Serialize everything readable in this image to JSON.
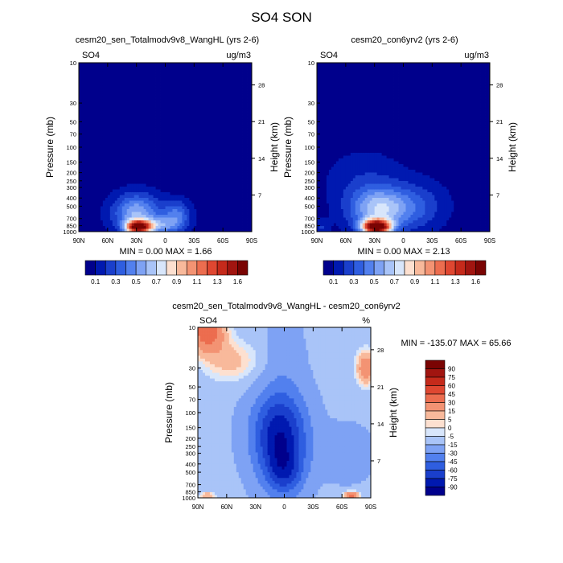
{
  "figure": {
    "title": "SO4 SON"
  },
  "chart_data": [
    {
      "type": "heatmap",
      "title": "cesm20_sen_Totalmodv9v8_WangHL (yrs 2-6)",
      "left_label": "SO4",
      "right_label": "ug/m3",
      "ylabel": "Pressure (mb)",
      "y2label": "Height (km)",
      "x_ticks": [
        "90N",
        "60N",
        "30N",
        "0",
        "30S",
        "60S",
        "90S"
      ],
      "y_ticks": [
        "10",
        "30",
        "50",
        "70",
        "100",
        "150",
        "200",
        "250",
        "300",
        "400",
        "500",
        "700",
        "850",
        "1000"
      ],
      "y2_ticks": [
        "28",
        "21",
        "14",
        "7"
      ],
      "y_scale": "log",
      "min_max": "MIN =   0.00   MAX =   1.66",
      "min": 0.0,
      "max": 1.66,
      "colorbar": {
        "orientation": "horizontal",
        "labels": [
          "0.1",
          "0.3",
          "0.5",
          "0.7",
          "0.9",
          "1.1",
          "1.3",
          "1.6"
        ],
        "colors": [
          "#00008c",
          "#0019b0",
          "#1a3fcc",
          "#2f5ee0",
          "#5280ee",
          "#7ea2f4",
          "#a9c4f8",
          "#d8e6fb",
          "#fde0d0",
          "#f8b99b",
          "#f39373",
          "#ec6d4f",
          "#df4731",
          "#c52a1b",
          "#a11510",
          "#7a0403"
        ]
      },
      "field": {
        "background": 0.05,
        "blobs": [
          {
            "lat": 28,
            "p": 880,
            "lat_width": 12,
            "logp_width": 0.07,
            "amp": 1.6
          },
          {
            "lat": 30,
            "p": 600,
            "lat_width": 24,
            "logp_width": 0.22,
            "amp": 0.55
          },
          {
            "lat": -12,
            "p": 620,
            "lat_width": 14,
            "logp_width": 0.16,
            "amp": 0.35
          },
          {
            "lat": 5,
            "p": 850,
            "lat_width": 22,
            "logp_width": 0.1,
            "amp": 0.4
          }
        ]
      }
    },
    {
      "type": "heatmap",
      "title": "cesm20_con6yrv2 (yrs 2-6)",
      "left_label": "SO4",
      "right_label": "ug/m3",
      "ylabel": "Pressure (mb)",
      "y2label": "Height (km)",
      "x_ticks": [
        "90N",
        "60N",
        "30N",
        "0",
        "30S",
        "60S",
        "90S"
      ],
      "y_ticks": [
        "10",
        "30",
        "50",
        "70",
        "100",
        "150",
        "200",
        "250",
        "300",
        "400",
        "500",
        "700",
        "850",
        "1000"
      ],
      "y2_ticks": [
        "28",
        "21",
        "14",
        "7"
      ],
      "y_scale": "log",
      "min_max": "MIN =   0.00   MAX =   2.13",
      "min": 0.0,
      "max": 2.13,
      "colorbar": {
        "orientation": "horizontal",
        "labels": [
          "0.1",
          "0.3",
          "0.5",
          "0.7",
          "0.9",
          "1.1",
          "1.3",
          "1.6"
        ],
        "colors": [
          "#00008c",
          "#0019b0",
          "#1a3fcc",
          "#2f5ee0",
          "#5280ee",
          "#7ea2f4",
          "#a9c4f8",
          "#d8e6fb",
          "#fde0d0",
          "#f8b99b",
          "#f39373",
          "#ec6d4f",
          "#df4731",
          "#c52a1b",
          "#a11510",
          "#7a0403"
        ]
      },
      "field": {
        "background": 0.05,
        "blobs": [
          {
            "lat": 28,
            "p": 880,
            "lat_width": 14,
            "logp_width": 0.08,
            "amp": 1.7
          },
          {
            "lat": 25,
            "p": 550,
            "lat_width": 30,
            "logp_width": 0.25,
            "amp": 0.6
          },
          {
            "lat": -15,
            "p": 500,
            "lat_width": 30,
            "logp_width": 0.28,
            "amp": 0.22
          },
          {
            "lat": 40,
            "p": 250,
            "lat_width": 40,
            "logp_width": 0.35,
            "amp": 0.13
          },
          {
            "lat": 85,
            "p": 900,
            "lat_width": 8,
            "logp_width": 0.1,
            "amp": 0.15
          }
        ]
      }
    },
    {
      "type": "heatmap",
      "title": "cesm20_sen_Totalmodv9v8_WangHL - cesm20_con6yrv2",
      "left_label": "SO4",
      "right_label": "%",
      "ylabel": "Pressure (mb)",
      "y2label": "Height (km)",
      "x_ticks": [
        "90N",
        "60N",
        "30N",
        "0",
        "30S",
        "60S",
        "90S"
      ],
      "y_ticks": [
        "10",
        "30",
        "50",
        "70",
        "100",
        "150",
        "200",
        "250",
        "300",
        "400",
        "500",
        "700",
        "850",
        "1000"
      ],
      "y2_ticks": [
        "28",
        "21",
        "14",
        "7"
      ],
      "y_scale": "log",
      "min_max": "MIN = -135.07   MAX =  65.66",
      "min": -135.07,
      "max": 65.66,
      "colorbar": {
        "orientation": "vertical",
        "labels": [
          "90",
          "75",
          "60",
          "45",
          "30",
          "15",
          "5",
          "0",
          "-5",
          "-15",
          "-30",
          "-45",
          "-60",
          "-75",
          "-90"
        ],
        "colors": [
          "#7a0403",
          "#a11510",
          "#c52a1b",
          "#df4731",
          "#ec6d4f",
          "#f39373",
          "#f8b99b",
          "#fde0d0",
          "#d8e6fb",
          "#a9c4f8",
          "#7ea2f4",
          "#5280ee",
          "#2f5ee0",
          "#1a3fcc",
          "#0019b0",
          "#00008c"
        ]
      },
      "field": {
        "background": -12,
        "blobs": [
          {
            "lat": 5,
            "p": 180,
            "lat_width": 28,
            "logp_width": 0.5,
            "amp": -75
          },
          {
            "lat": 0,
            "p": 500,
            "lat_width": 20,
            "logp_width": 0.3,
            "amp": -40
          },
          {
            "lat": 80,
            "p": 11,
            "lat_width": 18,
            "logp_width": 0.25,
            "amp": 55
          },
          {
            "lat": 55,
            "p": 25,
            "lat_width": 30,
            "logp_width": 0.25,
            "amp": 20
          },
          {
            "lat": -85,
            "p": 30,
            "lat_width": 10,
            "logp_width": 0.2,
            "amp": 40
          },
          {
            "lat": 0,
            "p": 20,
            "lat_width": 20,
            "logp_width": 0.5,
            "amp": -10
          },
          {
            "lat": -70,
            "p": 950,
            "lat_width": 8,
            "logp_width": 0.05,
            "amp": 50
          },
          {
            "lat": 80,
            "p": 950,
            "lat_width": 8,
            "logp_width": 0.05,
            "amp": 25
          },
          {
            "lat": -65,
            "p": 300,
            "lat_width": 25,
            "logp_width": 0.3,
            "amp": -15
          }
        ]
      }
    }
  ]
}
